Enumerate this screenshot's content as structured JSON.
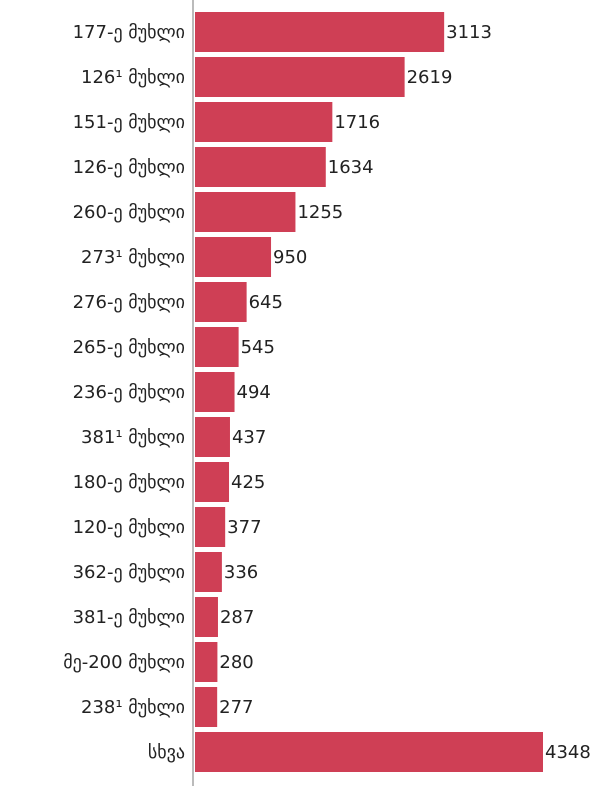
{
  "chart_data": {
    "type": "hbar",
    "categories": [
      "177-ე მუხლი",
      "126¹ მუხლი",
      "151-ე მუხლი",
      "126-ე მუხლი",
      "260-ე მუხლი",
      "273¹ მუხლი",
      "276-ე მუხლი",
      "265-ე მუხლი",
      "236-ე მუხლი",
      "381¹ მუხლი",
      "180-ე მუხლი",
      "120-ე მუხლი",
      "362-ე მუხლი",
      "381-ე მუხლი",
      "მე-200 მუხლი",
      "238¹ მუხლი",
      "სხვა"
    ],
    "values": [
      3113,
      2619,
      1716,
      1634,
      1255,
      950,
      645,
      545,
      494,
      437,
      425,
      377,
      336,
      287,
      280,
      277,
      4348
    ],
    "color": "#cf3f55",
    "xlim": [
      0,
      4348
    ]
  }
}
